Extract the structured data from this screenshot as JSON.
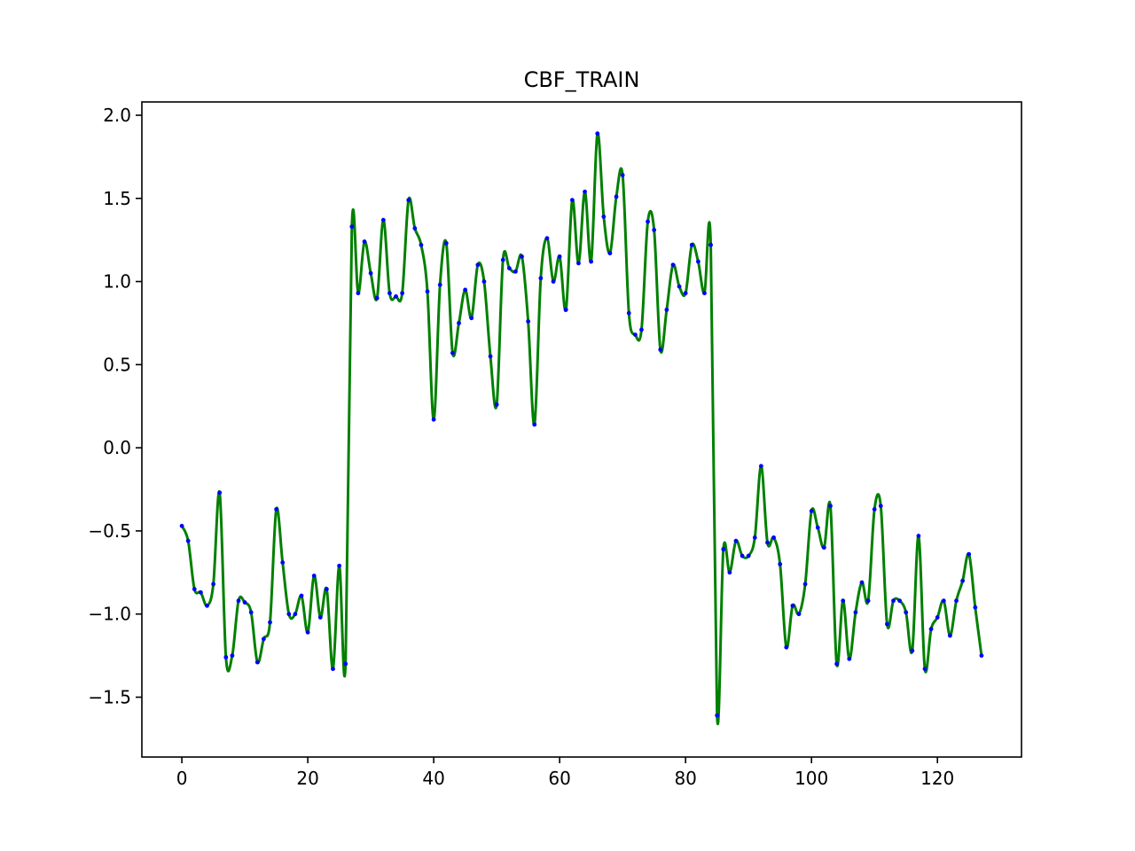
{
  "chart_data": {
    "type": "line",
    "title": "CBF_TRAIN",
    "xlabel": "",
    "ylabel": "",
    "xlim": [
      -6.35,
      133.35
    ],
    "ylim": [
      -1.86,
      2.08
    ],
    "grid": false,
    "x_ticks": [
      0,
      20,
      40,
      60,
      80,
      100,
      120
    ],
    "x_tick_labels": [
      "0",
      "20",
      "40",
      "60",
      "80",
      "100",
      "120"
    ],
    "y_ticks": [
      -1.5,
      -1.0,
      -0.5,
      0.0,
      0.5,
      1.0,
      1.5,
      2.0
    ],
    "y_tick_labels": [
      "−1.5",
      "−1.0",
      "−0.5",
      "0.0",
      "0.5",
      "1.0",
      "1.5",
      "2.0"
    ],
    "series": [
      {
        "style": "smooth-line-with-markers",
        "line_color": "#008000",
        "marker_color": "#0000ff",
        "x": [
          0,
          1,
          2,
          3,
          4,
          5,
          6,
          7,
          8,
          9,
          10,
          11,
          12,
          13,
          14,
          15,
          16,
          17,
          18,
          19,
          20,
          21,
          22,
          23,
          24,
          25,
          26,
          27,
          28,
          29,
          30,
          31,
          32,
          33,
          34,
          35,
          36,
          37,
          38,
          39,
          40,
          41,
          42,
          43,
          44,
          45,
          46,
          47,
          48,
          49,
          50,
          51,
          52,
          53,
          54,
          55,
          56,
          57,
          58,
          59,
          60,
          61,
          62,
          63,
          64,
          65,
          66,
          67,
          68,
          69,
          70,
          71,
          72,
          73,
          74,
          75,
          76,
          77,
          78,
          79,
          80,
          81,
          82,
          83,
          84,
          85,
          86,
          87,
          88,
          89,
          90,
          91,
          92,
          93,
          94,
          95,
          96,
          97,
          98,
          99,
          100,
          101,
          102,
          103,
          104,
          105,
          106,
          107,
          108,
          109,
          110,
          111,
          112,
          113,
          114,
          115,
          116,
          117,
          118,
          119,
          120,
          121,
          122,
          123,
          124,
          125,
          126,
          127
        ],
        "values": [
          -0.47,
          -0.56,
          -0.85,
          -0.87,
          -0.95,
          -0.82,
          -0.27,
          -1.26,
          -1.25,
          -0.92,
          -0.93,
          -0.99,
          -1.29,
          -1.15,
          -1.05,
          -0.37,
          -0.69,
          -1.0,
          -1.0,
          -0.89,
          -1.11,
          -0.77,
          -1.02,
          -0.85,
          -1.33,
          -0.71,
          -1.3,
          1.33,
          0.93,
          1.24,
          1.05,
          0.9,
          1.37,
          0.93,
          0.91,
          0.93,
          1.49,
          1.32,
          1.22,
          0.94,
          0.17,
          0.98,
          1.23,
          0.57,
          0.75,
          0.95,
          0.78,
          1.1,
          1.0,
          0.55,
          0.26,
          1.13,
          1.08,
          1.06,
          1.15,
          0.76,
          0.14,
          1.02,
          1.26,
          1.0,
          1.15,
          0.83,
          1.49,
          1.11,
          1.54,
          1.12,
          1.89,
          1.39,
          1.17,
          1.51,
          1.64,
          0.81,
          0.68,
          0.71,
          1.36,
          1.31,
          0.59,
          0.83,
          1.1,
          0.97,
          0.93,
          1.22,
          1.12,
          0.93,
          1.22,
          -1.61,
          -0.61,
          -0.75,
          -0.56,
          -0.65,
          -0.65,
          -0.54,
          -0.11,
          -0.57,
          -0.54,
          -0.7,
          -1.2,
          -0.95,
          -1.0,
          -0.82,
          -0.38,
          -0.48,
          -0.6,
          -0.35,
          -1.3,
          -0.92,
          -1.27,
          -0.99,
          -0.81,
          -0.92,
          -0.37,
          -0.35,
          -1.06,
          -0.92,
          -0.92,
          -0.99,
          -1.22,
          -0.53,
          -1.33,
          -1.09,
          -1.02,
          -0.92,
          -1.13,
          -0.92,
          -0.8,
          -0.64,
          -0.96,
          -1.25
        ]
      }
    ]
  }
}
